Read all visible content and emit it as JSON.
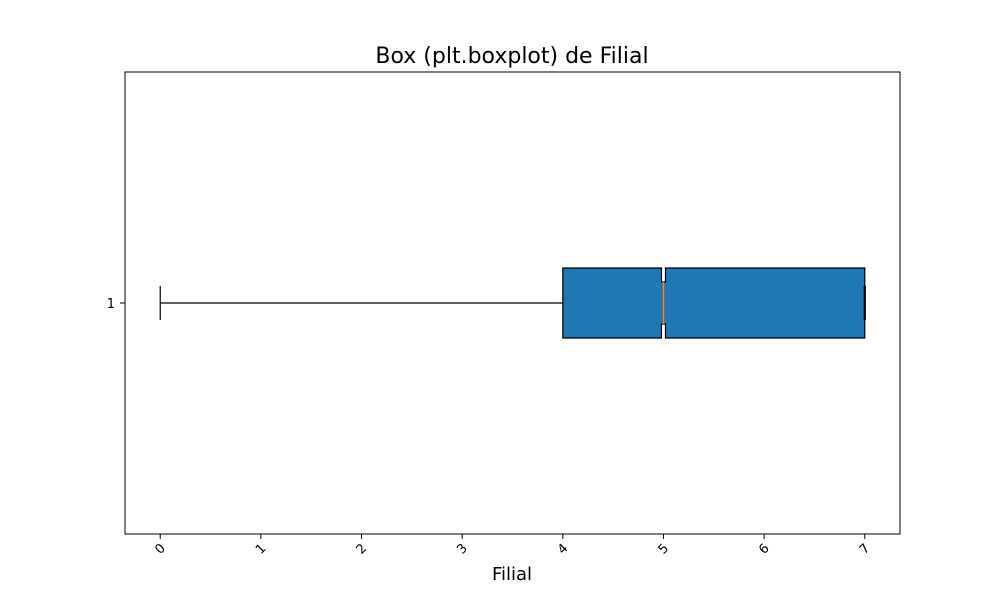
{
  "chart_data": {
    "type": "boxplot",
    "orientation": "horizontal",
    "notch": true,
    "title": "Box (plt.boxplot) de Filial",
    "xlabel": "Filial",
    "ylabel": "",
    "xlim": [
      -0.35,
      7.35
    ],
    "x_ticks": [
      0,
      1,
      2,
      3,
      4,
      5,
      6,
      7
    ],
    "x_tick_rotation": 45,
    "y_ticks": [
      "1"
    ],
    "grid": false,
    "series": [
      {
        "position": 1,
        "whisker_low": 0,
        "q1": 4,
        "median": 5,
        "q3": 7,
        "whisker_high": 7,
        "notch_low": 4.98,
        "notch_high": 5.02,
        "fill": "#1f77b4",
        "median_color": "#ff7f0e"
      }
    ]
  }
}
